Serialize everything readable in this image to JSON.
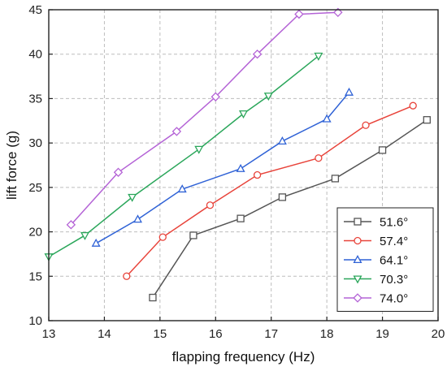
{
  "chart_data": {
    "type": "line",
    "xlabel": "flapping frequency (Hz)",
    "ylabel": "lift force (g)",
    "xlim": [
      13,
      20
    ],
    "ylim": [
      10,
      45
    ],
    "xticks": [
      13,
      14,
      15,
      16,
      17,
      18,
      19,
      20
    ],
    "yticks": [
      10,
      15,
      20,
      25,
      30,
      35,
      40,
      45
    ],
    "xtick_labels": [
      "13",
      "14",
      "15",
      "16",
      "17",
      "18",
      "19",
      "20"
    ],
    "ytick_labels": [
      "10",
      "15",
      "20",
      "25",
      "30",
      "35",
      "40",
      "45"
    ],
    "grid": true,
    "legend_position": "bottom-right",
    "series": [
      {
        "name": "51.6°",
        "color": "#555555",
        "marker": "square",
        "points": [
          [
            14.87,
            12.6
          ],
          [
            15.6,
            19.6
          ],
          [
            16.45,
            21.5
          ],
          [
            17.2,
            23.9
          ],
          [
            18.15,
            26.0
          ],
          [
            19.0,
            29.2
          ],
          [
            19.8,
            32.6
          ]
        ]
      },
      {
        "name": "57.4°",
        "color": "#e8433a",
        "marker": "circle",
        "points": [
          [
            14.4,
            15.0
          ],
          [
            15.05,
            19.4
          ],
          [
            15.9,
            23.0
          ],
          [
            16.75,
            26.4
          ],
          [
            17.85,
            28.3
          ],
          [
            18.7,
            32.0
          ],
          [
            19.55,
            34.2
          ]
        ]
      },
      {
        "name": "64.1°",
        "color": "#2f62d6",
        "marker": "triangle-up",
        "points": [
          [
            13.85,
            18.7
          ],
          [
            14.6,
            21.4
          ],
          [
            15.4,
            24.8
          ],
          [
            16.45,
            27.1
          ],
          [
            17.2,
            30.2
          ],
          [
            18.0,
            32.7
          ],
          [
            18.4,
            35.7
          ]
        ]
      },
      {
        "name": "70.3°",
        "color": "#2aa65a",
        "marker": "triangle-down",
        "points": [
          [
            13.0,
            17.2
          ],
          [
            13.65,
            19.6
          ],
          [
            14.5,
            23.9
          ],
          [
            15.7,
            29.3
          ],
          [
            16.5,
            33.3
          ],
          [
            16.95,
            35.3
          ],
          [
            17.85,
            39.8
          ]
        ]
      },
      {
        "name": "74.0°",
        "color": "#b463d6",
        "marker": "diamond",
        "points": [
          [
            13.4,
            20.8
          ],
          [
            14.25,
            26.7
          ],
          [
            15.3,
            31.3
          ],
          [
            16.0,
            35.2
          ],
          [
            16.75,
            40.0
          ],
          [
            17.5,
            44.5
          ],
          [
            18.2,
            44.7
          ]
        ]
      }
    ]
  }
}
